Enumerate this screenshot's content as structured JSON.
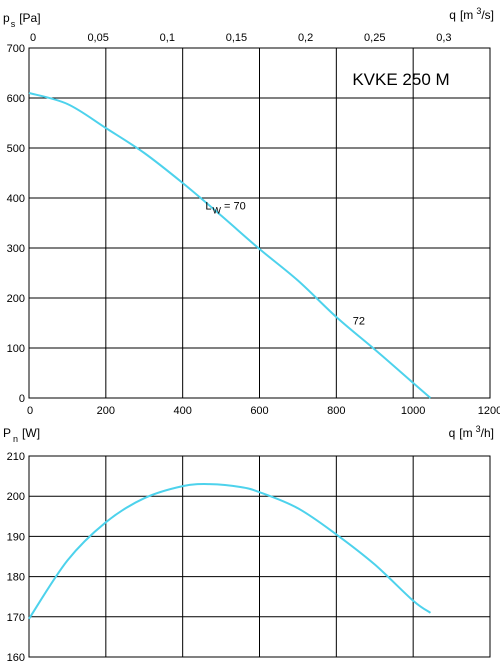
{
  "chart_data": [
    {
      "type": "line",
      "title": "KVKE 250 M",
      "y_label": {
        "symbol": "p",
        "subscript": "s",
        "unit": "[Pa]"
      },
      "x_label_bottom": {
        "symbol": "q",
        "unit_prefix": "[m",
        "superscript": "3",
        "unit_suffix": "/h]"
      },
      "x_label_top": {
        "symbol": "q",
        "unit_prefix": "[m",
        "superscript": "3",
        "unit_suffix": "/s]"
      },
      "xlim": [
        0,
        1200
      ],
      "ylim": [
        0,
        700
      ],
      "x_ticks": [
        "0",
        "200",
        "400",
        "600",
        "800",
        "1000",
        "1200"
      ],
      "y_ticks": [
        "0",
        "100",
        "200",
        "300",
        "400",
        "500",
        "600",
        "700"
      ],
      "x_top_ticks": [
        "0",
        "0,05",
        "0,1",
        "0,15",
        "0,2",
        "0,25",
        "0,3"
      ],
      "x_top_tick_values_m3h": [
        0,
        180,
        360,
        540,
        720,
        900,
        1080
      ],
      "grid": true,
      "series": [
        {
          "color": "#4dd2ec",
          "x": [
            0,
            100,
            200,
            300,
            400,
            500,
            600,
            700,
            800,
            900,
            1000,
            1045
          ],
          "y": [
            610,
            588,
            540,
            490,
            430,
            365,
            298,
            235,
            162,
            97,
            30,
            0
          ]
        }
      ],
      "annotations": [
        {
          "text_main": "L",
          "text_sub": "W",
          "text_tail": " = 70",
          "x": 485,
          "y": 385
        },
        {
          "text": "72",
          "x": 835,
          "y": 155
        }
      ]
    },
    {
      "type": "line",
      "y_label": {
        "symbol": "P",
        "subscript": "n",
        "unit": "[W]"
      },
      "xlim": [
        0,
        1200
      ],
      "ylim": [
        160,
        210
      ],
      "y_ticks": [
        "160",
        "170",
        "180",
        "190",
        "200",
        "210"
      ],
      "grid": true,
      "series": [
        {
          "color": "#4dd2ec",
          "x": [
            0,
            100,
            200,
            300,
            400,
            470,
            550,
            600,
            700,
            800,
            900,
            1000,
            1045
          ],
          "y": [
            169.5,
            184,
            193.5,
            199.5,
            202.5,
            203,
            202.3,
            201,
            197,
            190.5,
            183,
            174,
            171
          ]
        }
      ]
    }
  ]
}
